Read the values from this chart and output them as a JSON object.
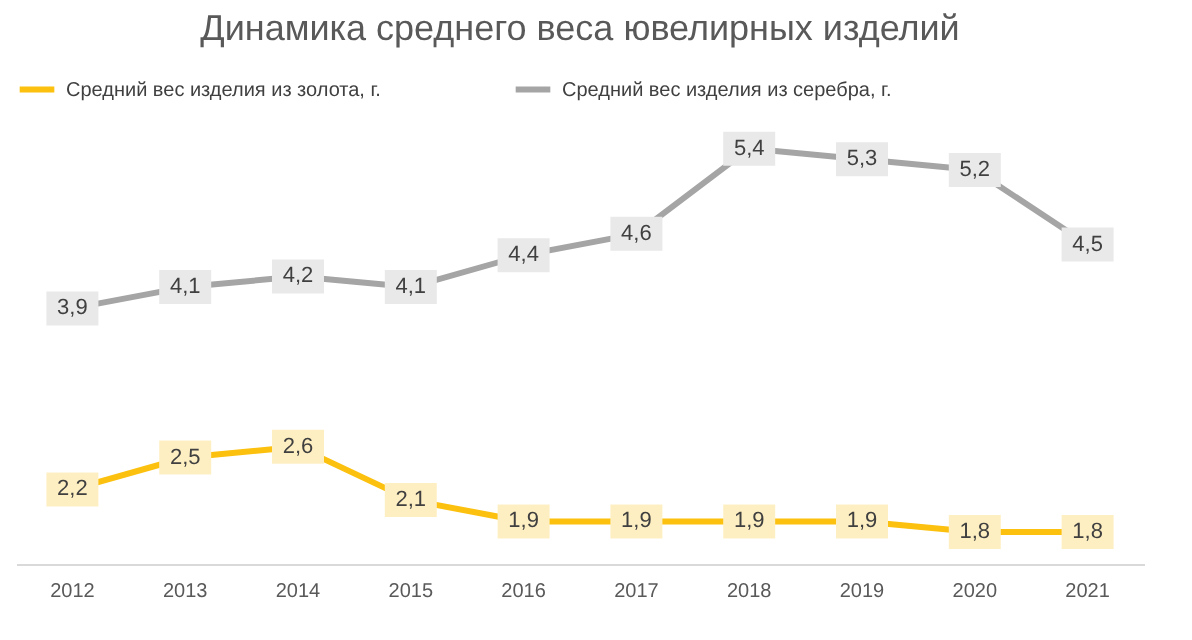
{
  "chart_data": {
    "type": "line",
    "title": "Динамика среднего веса ювелирных изделий",
    "categories": [
      "2012",
      "2013",
      "2014",
      "2015",
      "2016",
      "2017",
      "2018",
      "2019",
      "2020",
      "2021"
    ],
    "series": [
      {
        "name": "Средний вес изделия из золота, г.",
        "color": "#fcc00f",
        "values": [
          2.2,
          2.5,
          2.6,
          2.1,
          1.9,
          1.9,
          1.9,
          1.9,
          1.8,
          1.8
        ],
        "value_labels": [
          "2,2",
          "2,5",
          "2,6",
          "2,1",
          "1,9",
          "1,9",
          "1,9",
          "1,9",
          "1,8",
          "1,8"
        ]
      },
      {
        "name": "Средний вес изделия из серебра, г.",
        "color": "#a5a5a5",
        "values": [
          3.9,
          4.1,
          4.2,
          4.1,
          4.4,
          4.6,
          5.4,
          5.3,
          5.2,
          4.5
        ],
        "value_labels": [
          "3,9",
          "4,1",
          "4,2",
          "4,1",
          "4,4",
          "4,6",
          "5,4",
          "5,3",
          "5,2",
          "4,5"
        ]
      }
    ],
    "legend": "top",
    "grid": false,
    "marker": "square",
    "line_style": "solid"
  }
}
